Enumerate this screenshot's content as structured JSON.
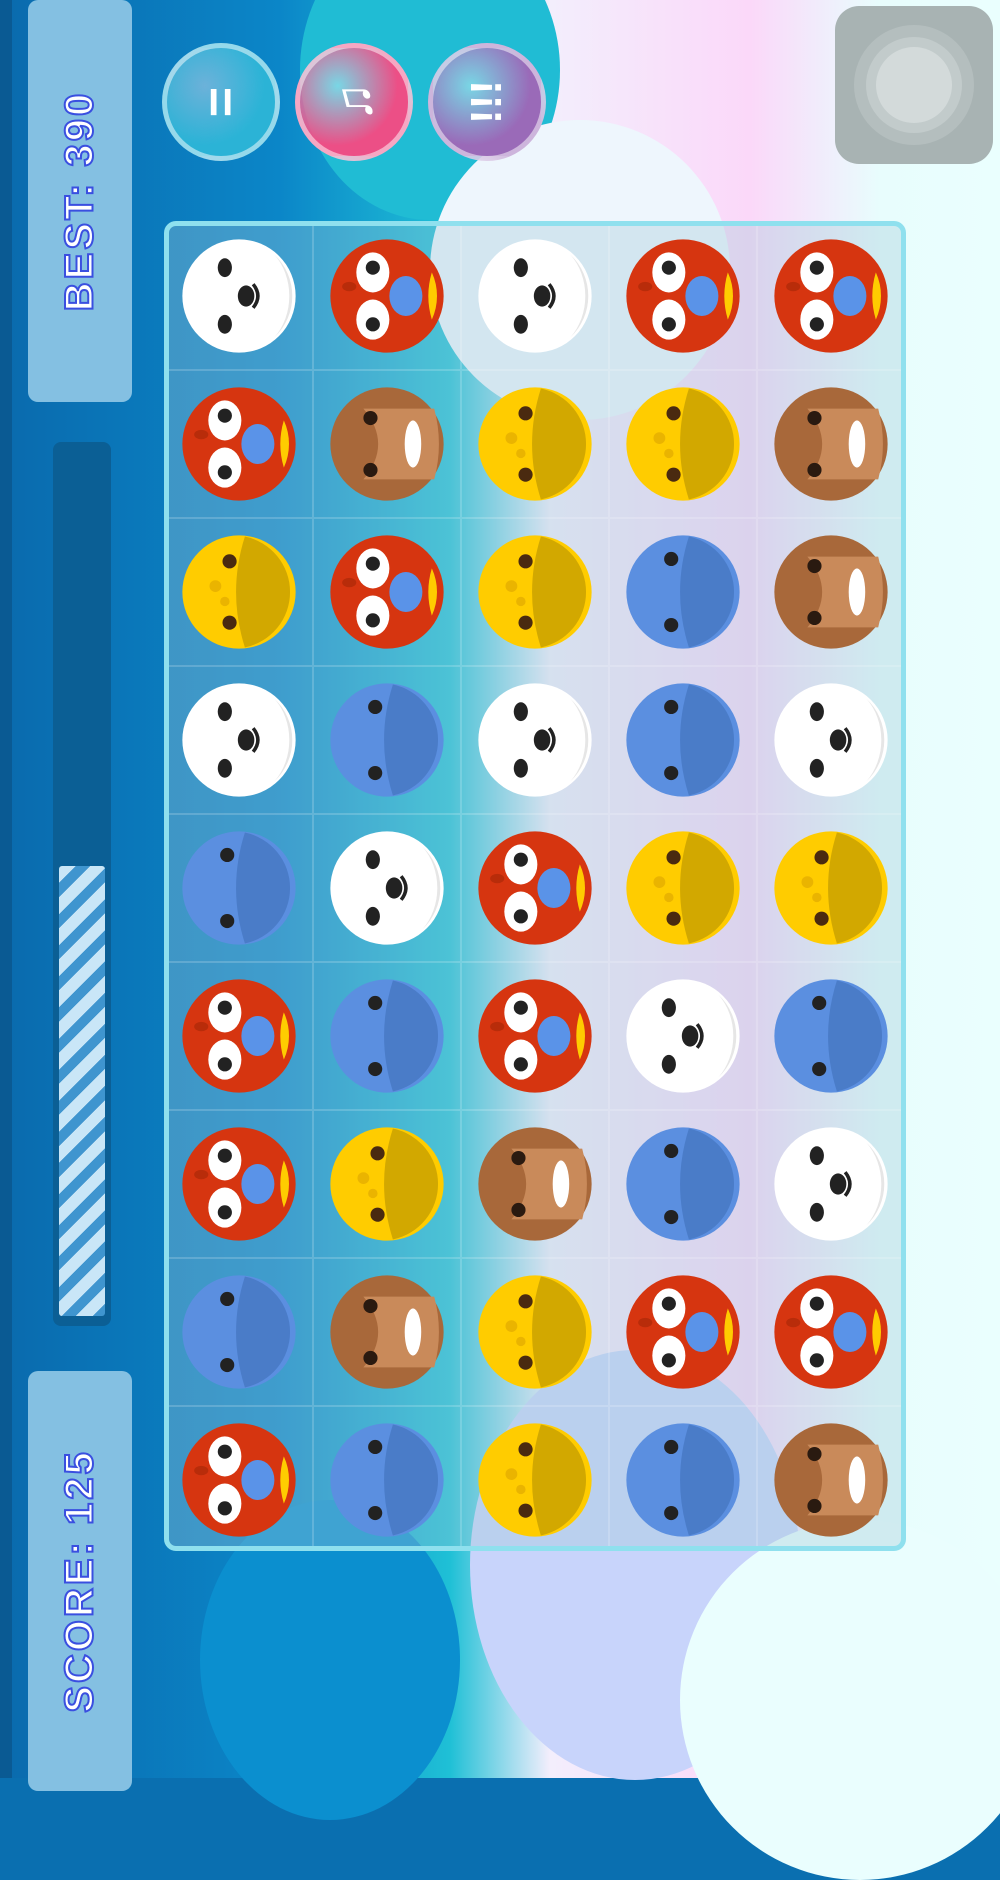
{
  "hud": {
    "best_label": "BEST: 390",
    "score_label": "SCORE: 125",
    "progress": 0.52
  },
  "buttons": [
    {
      "name": "pause-button",
      "glyph": "=",
      "color": "#2bb3d6"
    },
    {
      "name": "music-button",
      "glyph": "♫",
      "color": "#ec4f86"
    },
    {
      "name": "hint-button",
      "glyph": "!!!",
      "color": "#9a6ab8"
    }
  ],
  "colors": {
    "panda": "#ffffff",
    "parrot": "#d63510",
    "chick": "#ffcc00",
    "blue": "#5b8fe0",
    "monkey": "#a8683a"
  },
  "grid": [
    [
      "panda",
      "parrot",
      "panda",
      "parrot",
      "parrot"
    ],
    [
      "parrot",
      "monkey",
      "chick",
      "chick",
      "monkey"
    ],
    [
      "chick",
      "parrot",
      "chick",
      "blue",
      "monkey"
    ],
    [
      "panda",
      "blue",
      "panda",
      "blue",
      "panda"
    ],
    [
      "blue",
      "panda",
      "parrot",
      "chick",
      "chick"
    ],
    [
      "parrot",
      "blue",
      "parrot",
      "panda",
      "blue"
    ],
    [
      "parrot",
      "chick",
      "monkey",
      "blue",
      "panda"
    ],
    [
      "blue",
      "monkey",
      "chick",
      "parrot",
      "parrot"
    ],
    [
      "parrot",
      "blue",
      "chick",
      "blue",
      "monkey"
    ]
  ]
}
